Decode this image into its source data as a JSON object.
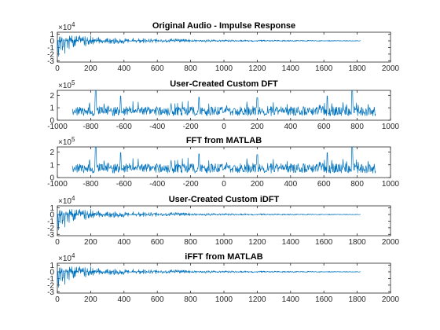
{
  "colors": {
    "series": "#0072BD",
    "axis": "#262626"
  },
  "chart_data": [
    {
      "type": "line",
      "title": "Original Audio - Impulse Response",
      "xlabel": "",
      "ylabel": "",
      "xlim": [
        0,
        2000
      ],
      "ylim": [
        -3.2,
        1.3
      ],
      "y_exponent": "4",
      "xticks": [
        "0",
        "200",
        "400",
        "600",
        "800",
        "1000",
        "1200",
        "1400",
        "1600",
        "1800",
        "2000"
      ],
      "xtick_values": [
        0,
        200,
        400,
        600,
        800,
        1000,
        1200,
        1400,
        1600,
        1800,
        2000
      ],
      "yticks": [
        "-3",
        "-2",
        "-1",
        "0",
        "1"
      ],
      "ytick_values": [
        -3,
        -2,
        -1,
        0,
        1
      ],
      "shape": "impulse",
      "x_extent": [
        0,
        1820
      ],
      "envelope": [
        [
          0,
          1.0,
          -3.1
        ],
        [
          15,
          0.9,
          -1.4
        ],
        [
          60,
          0.75,
          -2.3
        ],
        [
          100,
          0.8,
          -0.9
        ],
        [
          200,
          0.9,
          -0.75
        ],
        [
          300,
          0.5,
          -0.5
        ],
        [
          500,
          0.4,
          -0.35
        ],
        [
          800,
          0.25,
          -0.2
        ],
        [
          1200,
          0.12,
          -0.12
        ],
        [
          1820,
          0.05,
          -0.05
        ]
      ]
    },
    {
      "type": "line",
      "title": "User-Created Custom DFT",
      "xlabel": "",
      "ylabel": "",
      "xlim": [
        -1000,
        1000
      ],
      "ylim": [
        0,
        2.4
      ],
      "y_exponent": "5",
      "xticks": [
        "-1000",
        "-800",
        "-600",
        "-400",
        "-200",
        "0",
        "200",
        "400",
        "600",
        "800",
        "1000"
      ],
      "xtick_values": [
        -1000,
        -800,
        -600,
        -400,
        -200,
        0,
        200,
        400,
        600,
        800,
        1000
      ],
      "yticks": [
        "0",
        "1",
        "2"
      ],
      "ytick_values": [
        0,
        1,
        2
      ],
      "shape": "spectrum",
      "x_extent": [
        -910,
        910
      ],
      "peaks": [
        [
          -770,
          2.4
        ],
        [
          -620,
          1.95
        ],
        [
          -150,
          1.85
        ],
        [
          200,
          1.8
        ],
        [
          620,
          1.95
        ],
        [
          770,
          2.4
        ]
      ]
    },
    {
      "type": "line",
      "title": "FFT from MATLAB",
      "xlabel": "",
      "ylabel": "",
      "xlim": [
        -1000,
        1000
      ],
      "ylim": [
        0,
        2.4
      ],
      "y_exponent": "5",
      "xticks": [
        "-1000",
        "-800",
        "-600",
        "-400",
        "-200",
        "0",
        "200",
        "400",
        "600",
        "800",
        "1000"
      ],
      "xtick_values": [
        -1000,
        -800,
        -600,
        -400,
        -200,
        0,
        200,
        400,
        600,
        800,
        1000
      ],
      "yticks": [
        "0",
        "1",
        "2"
      ],
      "ytick_values": [
        0,
        1,
        2
      ],
      "shape": "spectrum",
      "x_extent": [
        -910,
        910
      ],
      "peaks": [
        [
          -770,
          2.4
        ],
        [
          -620,
          1.95
        ],
        [
          -150,
          1.85
        ],
        [
          200,
          1.8
        ],
        [
          620,
          1.95
        ],
        [
          770,
          2.4
        ]
      ]
    },
    {
      "type": "line",
      "title": "User-Created Custom iDFT",
      "xlabel": "",
      "ylabel": "",
      "xlim": [
        0,
        2000
      ],
      "ylim": [
        -3.2,
        1.3
      ],
      "y_exponent": "4",
      "xticks": [
        "0",
        "200",
        "400",
        "600",
        "800",
        "1000",
        "1200",
        "1400",
        "1600",
        "1800",
        "2000"
      ],
      "xtick_values": [
        0,
        200,
        400,
        600,
        800,
        1000,
        1200,
        1400,
        1600,
        1800,
        2000
      ],
      "yticks": [
        "-3",
        "-2",
        "-1",
        "0",
        "1"
      ],
      "ytick_values": [
        -3,
        -2,
        -1,
        0,
        1
      ],
      "shape": "impulse",
      "x_extent": [
        0,
        1820
      ],
      "envelope": [
        [
          0,
          1.0,
          -3.1
        ],
        [
          15,
          0.9,
          -1.4
        ],
        [
          60,
          0.75,
          -2.3
        ],
        [
          100,
          0.8,
          -0.9
        ],
        [
          200,
          0.9,
          -0.75
        ],
        [
          300,
          0.5,
          -0.5
        ],
        [
          500,
          0.4,
          -0.35
        ],
        [
          800,
          0.25,
          -0.2
        ],
        [
          1200,
          0.12,
          -0.12
        ],
        [
          1820,
          0.05,
          -0.05
        ]
      ]
    },
    {
      "type": "line",
      "title": "iFFT from MATLAB",
      "xlabel": "",
      "ylabel": "",
      "xlim": [
        0,
        2000
      ],
      "ylim": [
        -3.2,
        1.3
      ],
      "y_exponent": "4",
      "xticks": [
        "0",
        "200",
        "400",
        "600",
        "800",
        "1000",
        "1200",
        "1400",
        "1600",
        "1800",
        "2000"
      ],
      "xtick_values": [
        0,
        200,
        400,
        600,
        800,
        1000,
        1200,
        1400,
        1600,
        1800,
        2000
      ],
      "yticks": [
        "-3",
        "-2",
        "-1",
        "0",
        "1"
      ],
      "ytick_values": [
        -3,
        -2,
        -1,
        0,
        1
      ],
      "shape": "impulse",
      "x_extent": [
        0,
        1820
      ],
      "envelope": [
        [
          0,
          1.0,
          -3.1
        ],
        [
          15,
          0.9,
          -1.4
        ],
        [
          60,
          0.75,
          -2.3
        ],
        [
          100,
          0.8,
          -0.9
        ],
        [
          200,
          0.9,
          -0.75
        ],
        [
          300,
          0.5,
          -0.5
        ],
        [
          500,
          0.4,
          -0.35
        ],
        [
          800,
          0.25,
          -0.2
        ],
        [
          1200,
          0.12,
          -0.12
        ],
        [
          1820,
          0.05,
          -0.05
        ]
      ]
    }
  ]
}
